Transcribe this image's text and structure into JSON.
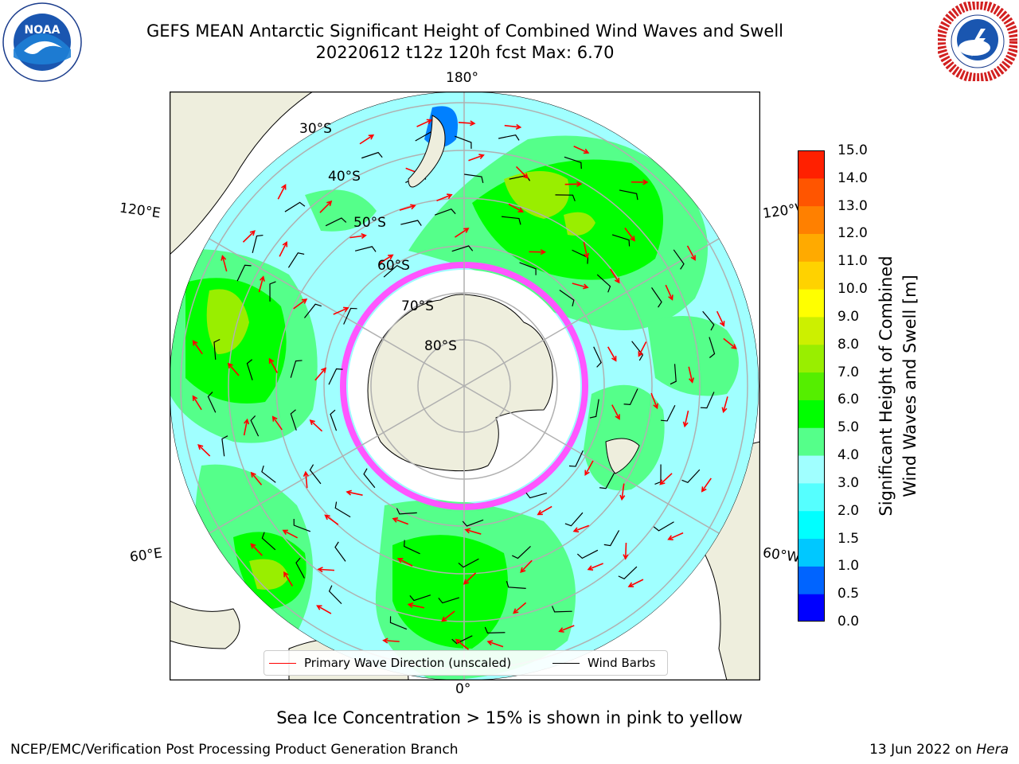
{
  "header": {
    "title": "GEFS MEAN Antarctic Significant Height of Combined Wind Waves and Swell",
    "subtitle": "20220612 t12z 120h fcst   Max: 6.70",
    "left_logo": "noaa-logo",
    "left_logo_text": "NOAA",
    "right_logo": "national-weather-service-logo"
  },
  "map": {
    "projection": "south-polar-stereographic",
    "longitude_labels": {
      "top": "180°",
      "bottom": "0°",
      "upper_left": "120°E",
      "upper_right": "120°W",
      "lower_left": "60°E",
      "lower_right": "60°W"
    },
    "latitude_labels": [
      "30°S",
      "40°S",
      "50°S",
      "60°S",
      "70°S",
      "80°S"
    ],
    "colors": {
      "land": "#eeeedd",
      "coast": "#000000",
      "graticule": "#b0b0b0",
      "wave_arrow": "#ff0000",
      "wind_barb": "#000000"
    }
  },
  "legend": {
    "entries": [
      {
        "label": "Primary Wave Direction (unscaled)",
        "color": "#ff0000"
      },
      {
        "label": "Wind Barbs",
        "color": "#000000"
      }
    ]
  },
  "colorbar": {
    "title_line1": "Significant Height of Combined",
    "title_line2": "Wind Waves and Swell [m]",
    "ticks": [
      "0.0",
      "0.5",
      "1.0",
      "1.5",
      "2.0",
      "3.0",
      "4.0",
      "5.0",
      "6.0",
      "7.0",
      "8.0",
      "9.0",
      "10.0",
      "11.0",
      "12.0",
      "13.0",
      "14.0",
      "15.0"
    ],
    "colors": [
      "#0000ff",
      "#0064ff",
      "#00c8ff",
      "#00ffff",
      "#55ffff",
      "#a0ffff",
      "#55ff8a",
      "#00ff00",
      "#55ee00",
      "#99ee00",
      "#ccf000",
      "#ffff00",
      "#ffd200",
      "#ffaa00",
      "#ff8000",
      "#ff5500",
      "#ff2000"
    ]
  },
  "caption": "Sea Ice Concentration > 15% is shown in pink to yellow",
  "footer": {
    "left": "NCEP/EMC/Verification Post Processing Product Generation Branch",
    "right_date": "13 Jun 2022 on ",
    "right_host": "Hera"
  }
}
